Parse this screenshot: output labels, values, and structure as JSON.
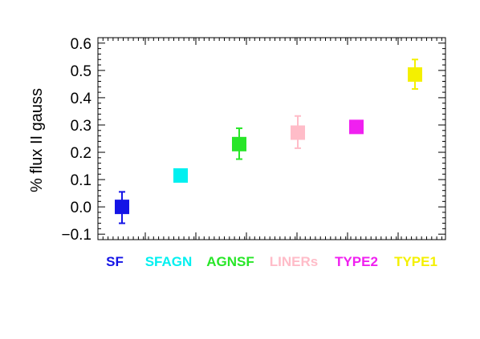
{
  "chart_data": {
    "type": "scatter",
    "title": "",
    "xlabel": "",
    "ylabel": "% flux II gauss",
    "ylim": [
      -0.12,
      0.62
    ],
    "yticks": [
      "0.6",
      "0.5",
      "0.4",
      "0.3",
      "0.2",
      "0.1",
      "0.0",
      "−0.1"
    ],
    "ytick_values": [
      0.6,
      0.5,
      0.4,
      0.3,
      0.2,
      0.1,
      0.0,
      -0.1
    ],
    "grid": false,
    "categories": [
      "SF",
      "SFAGN",
      "AGNSF",
      "LINERs",
      "TYPE2",
      "TYPE1"
    ],
    "category_colors": [
      "#1414e6",
      "#00f0f0",
      "#28e628",
      "#ffbcc8",
      "#f020f0",
      "#f4f000"
    ],
    "points": [
      {
        "category": "SF",
        "value": 0.0,
        "err_low": -0.06,
        "err_high": 0.055
      },
      {
        "category": "SFAGN",
        "value": 0.115,
        "err_low": 0.115,
        "err_high": 0.115
      },
      {
        "category": "AGNSF",
        "value": 0.23,
        "err_low": 0.175,
        "err_high": 0.288
      },
      {
        "category": "LINERs",
        "value": 0.272,
        "err_low": 0.215,
        "err_high": 0.333
      },
      {
        "category": "TYPE2",
        "value": 0.293,
        "err_low": 0.293,
        "err_high": 0.293
      },
      {
        "category": "TYPE1",
        "value": 0.485,
        "err_low": 0.432,
        "err_high": 0.54
      }
    ]
  }
}
